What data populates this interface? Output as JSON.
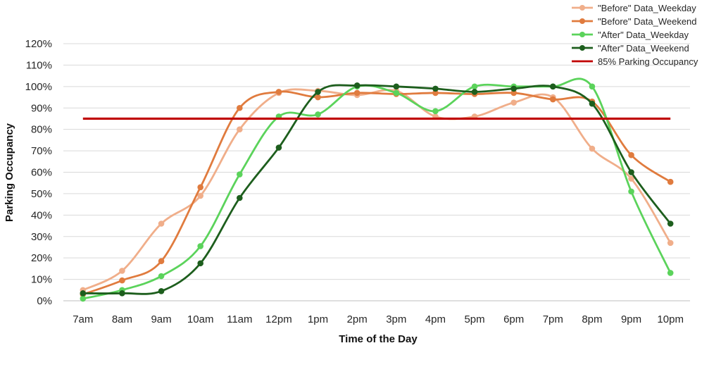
{
  "chart_data": {
    "type": "line",
    "xlabel": "Time of the Day",
    "ylabel": "Parking Occupancy",
    "ylim": [
      0,
      120
    ],
    "ytick_step": 10,
    "y_unit": "%",
    "grid": "horizontal",
    "legend_position": "top-right",
    "categories": [
      "7am",
      "8am",
      "9am",
      "10am",
      "11am",
      "12pm",
      "1pm",
      "2pm",
      "3pm",
      "4pm",
      "5pm",
      "6pm",
      "7pm",
      "8pm",
      "9pm",
      "10pm"
    ],
    "series": [
      {
        "name": "\"Before\" Data_Weekday",
        "color": "#F0AE8A",
        "values": [
          5,
          14,
          36,
          49,
          80,
          97,
          98,
          96,
          98,
          86,
          86,
          92.5,
          95,
          71,
          57,
          27
        ]
      },
      {
        "name": "\"Before\" Data_Weekend",
        "color": "#E07B3E",
        "values": [
          3,
          9.5,
          18.5,
          53,
          90,
          97.5,
          95,
          97,
          96.5,
          97,
          96.5,
          97,
          94,
          93,
          68,
          55.5
        ]
      },
      {
        "name": "\"After\" Data_Weekday",
        "color": "#5BD35B",
        "values": [
          1,
          5,
          11.5,
          25.5,
          59,
          86,
          87,
          100,
          97,
          88.5,
          100,
          100,
          100,
          100,
          51,
          13
        ]
      },
      {
        "name": "\"After\" Data_Weekend",
        "color": "#1D5E1D",
        "values": [
          3.5,
          3.5,
          4.5,
          17.5,
          48,
          71.5,
          97.5,
          100.5,
          100,
          99,
          97.5,
          99,
          100,
          92,
          60,
          36
        ]
      },
      {
        "name": "85% Parking Occupancy",
        "color": "#C00000",
        "values": [
          85,
          85,
          85,
          85,
          85,
          85,
          85,
          85,
          85,
          85,
          85,
          85,
          85,
          85,
          85,
          85
        ],
        "reference_line": true
      }
    ]
  }
}
